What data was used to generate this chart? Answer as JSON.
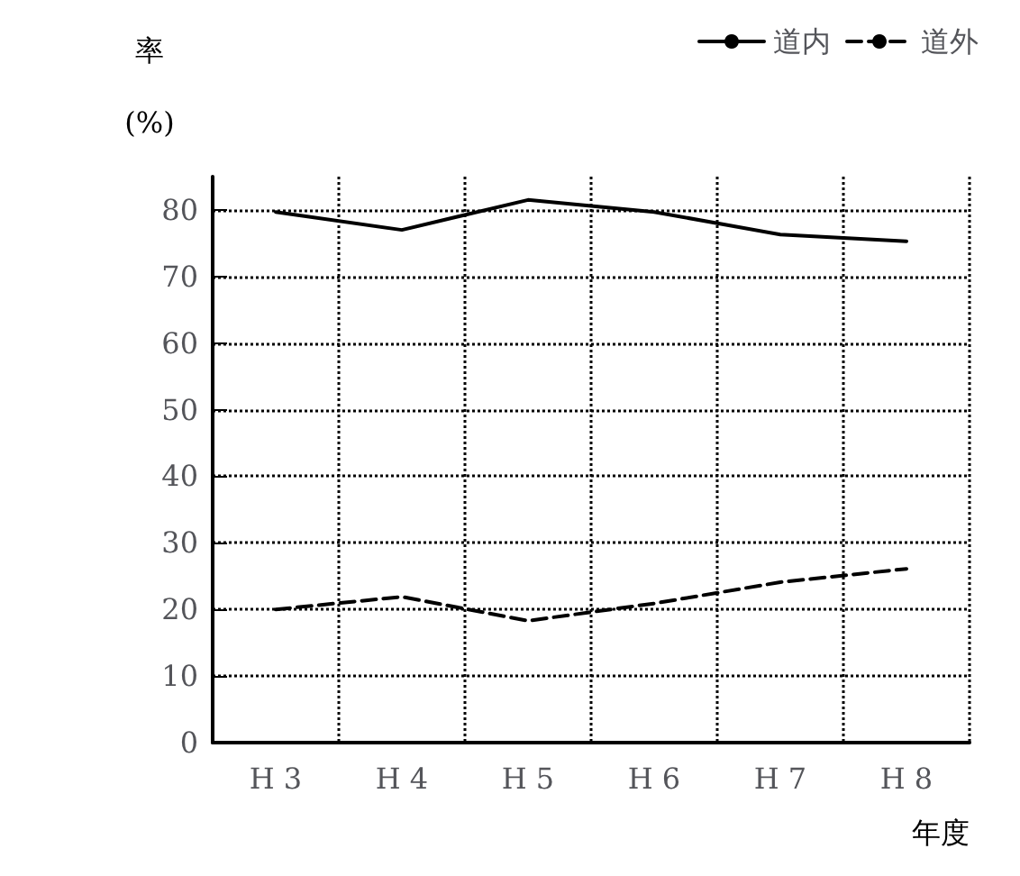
{
  "chart_data": {
    "type": "line",
    "ylabel": "率\n(%)",
    "xlabel": "年度",
    "categories": [
      "H 3",
      "H 4",
      "H 5",
      "H 6",
      "H 7",
      "H 8"
    ],
    "series": [
      {
        "name": "道内",
        "color": "#000000",
        "line_style": "solid",
        "values": [
          79.7,
          77,
          81.5,
          79.7,
          76.3,
          75.3
        ]
      },
      {
        "name": "道外",
        "color": "#000000",
        "line_style": "dashed",
        "values": [
          20,
          21.9,
          18.3,
          20.9,
          24.1,
          26.1
        ]
      }
    ],
    "ylim": [
      0,
      85
    ],
    "yticks": [
      0,
      10,
      20,
      30,
      40,
      50,
      60,
      70,
      80
    ],
    "grid": true,
    "legend": "top right",
    "marker": "none"
  }
}
